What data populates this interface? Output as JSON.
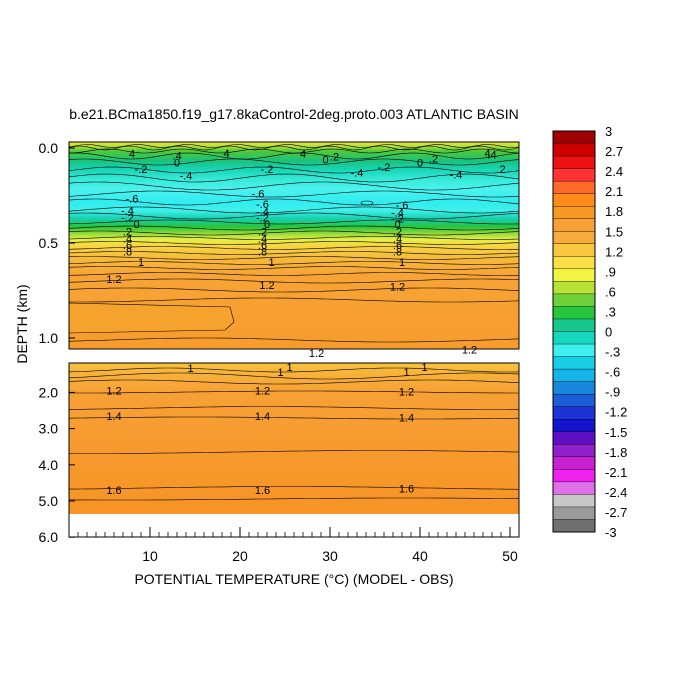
{
  "chart_data": {
    "type": "contour",
    "title": "b.e21.BCma1850.f19_g17.8kaControl-2deg.proto.003 ATLANTIC BASIN",
    "xlabel": "POTENTIAL TEMPERATURE (°C) (MODEL - OBS)",
    "ylabel": "DEPTH (km)",
    "xlim": [
      1,
      51
    ],
    "x_ticks": [
      "10",
      "20",
      "30",
      "40",
      "50"
    ],
    "upper_panel": {
      "ylim": [
        0.0,
        1.2
      ],
      "y_ticks": [
        "0.0",
        "0.5",
        "1.0"
      ]
    },
    "lower_panel": {
      "ylim": [
        1.2,
        6.0
      ],
      "y_ticks": [
        "2.0",
        "3.0",
        "4.0",
        "5.0",
        "6.0"
      ],
      "data_bottom_km": 5.35
    },
    "colorbar": {
      "labels": [
        "3",
        "2.7",
        "2.4",
        "2.1",
        "1.8",
        "1.5",
        "1.2",
        ".9",
        ".6",
        ".3",
        "0",
        "-.3",
        "-.6",
        "-.9",
        "-1.2",
        "-1.5",
        "-1.8",
        "-2.1",
        "-2.4",
        "-2.7",
        "-3"
      ],
      "colors": [
        "#a00000",
        "#cc0000",
        "#ee1111",
        "#ff3333",
        "#ff6a2a",
        "#ff8c1a",
        "#f79a22",
        "#f7a035",
        "#f6ad3b",
        "#f8c840",
        "#fae046",
        "#f3f545",
        "#b7e236",
        "#6fd13a",
        "#27c53b",
        "#16c88b",
        "#16d8c0",
        "#3ff0ee",
        "#18cde6",
        "#16b4e6",
        "#1888dc",
        "#1c5ed8",
        "#1c34d6",
        "#1414ce",
        "#5d0fc4",
        "#9020c7",
        "#c820d0",
        "#f020f0",
        "#e070e8",
        "#c8c8c8",
        "#9a9a9a",
        "#707070"
      ]
    },
    "contour_labels": [
      {
        "text": "4",
        "x": 8,
        "d": 0.03
      },
      {
        "text": "4",
        "x": 18.5,
        "d": 0.025
      },
      {
        "text": "4",
        "x": 27,
        "d": 0.03
      },
      {
        "text": "4",
        "x": 47.5,
        "d": 0.025
      },
      {
        "text": ".4",
        "x": 13,
        "d": 0.04
      },
      {
        "text": "0",
        "x": 13,
        "d": 0.075
      },
      {
        "text": "0",
        "x": 29.5,
        "d": 0.06
      },
      {
        "text": ".2",
        "x": 30.5,
        "d": 0.045
      },
      {
        "text": "0",
        "x": 40,
        "d": 0.075
      },
      {
        "text": ".2",
        "x": 41.5,
        "d": 0.055
      },
      {
        "text": ".4",
        "x": 48,
        "d": 0.035
      },
      {
        "text": "-.2",
        "x": 9,
        "d": 0.11
      },
      {
        "text": "-.4",
        "x": 14,
        "d": 0.145
      },
      {
        "text": "-.2",
        "x": 23,
        "d": 0.11
      },
      {
        "text": "-.4",
        "x": 33,
        "d": 0.13
      },
      {
        "text": "-.2",
        "x": 36,
        "d": 0.1
      },
      {
        "text": "-.4",
        "x": 44,
        "d": 0.14
      },
      {
        "text": ".2",
        "x": 49,
        "d": 0.11
      },
      {
        "text": "-.6",
        "x": 8,
        "d": 0.265
      },
      {
        "text": "-.4",
        "x": 7.5,
        "d": 0.33
      },
      {
        "text": "-.2",
        "x": 7.5,
        "d": 0.365
      },
      {
        "text": "0",
        "x": 8.5,
        "d": 0.4
      },
      {
        "text": ".2",
        "x": 7.5,
        "d": 0.44
      },
      {
        "text": ".4",
        "x": 7.5,
        "d": 0.475
      },
      {
        "text": ".6",
        "x": 7.5,
        "d": 0.51
      },
      {
        "text": ".8",
        "x": 7.5,
        "d": 0.545
      },
      {
        "text": "1",
        "x": 9,
        "d": 0.6
      },
      {
        "text": "-.6",
        "x": 22,
        "d": 0.24
      },
      {
        "text": "-.6",
        "x": 22.5,
        "d": 0.295
      },
      {
        "text": "-.4",
        "x": 22.5,
        "d": 0.335
      },
      {
        "text": "-.2",
        "x": 22.5,
        "d": 0.365
      },
      {
        "text": "0",
        "x": 23,
        "d": 0.4
      },
      {
        "text": ".2",
        "x": 22.5,
        "d": 0.44
      },
      {
        "text": ".4",
        "x": 22.5,
        "d": 0.475
      },
      {
        "text": ".6",
        "x": 22.5,
        "d": 0.51
      },
      {
        "text": ".8",
        "x": 22.5,
        "d": 0.545
      },
      {
        "text": "1",
        "x": 23.5,
        "d": 0.6
      },
      {
        "text": "-.6",
        "x": 38,
        "d": 0.3
      },
      {
        "text": "-.4",
        "x": 37.5,
        "d": 0.34
      },
      {
        "text": "-.2",
        "x": 37.5,
        "d": 0.37
      },
      {
        "text": "0",
        "x": 37.5,
        "d": 0.4
      },
      {
        "text": ".2",
        "x": 37.5,
        "d": 0.44
      },
      {
        "text": ".4",
        "x": 37.5,
        "d": 0.475
      },
      {
        "text": ".6",
        "x": 37.5,
        "d": 0.51
      },
      {
        "text": ".8",
        "x": 37.5,
        "d": 0.545
      },
      {
        "text": "1",
        "x": 38,
        "d": 0.6
      },
      {
        "text": "1.2",
        "x": 6,
        "d": 0.69
      },
      {
        "text": "1.2",
        "x": 23,
        "d": 0.72
      },
      {
        "text": "1.2",
        "x": 37.5,
        "d": 0.73
      },
      {
        "text": "1.2",
        "x": 28.5,
        "d": 1.08
      },
      {
        "text": "1.2",
        "x": 45.5,
        "d": 1.06
      },
      {
        "text": "1",
        "x": 14.5,
        "d": 1.33
      },
      {
        "text": "1",
        "x": 25.5,
        "d": 1.3
      },
      {
        "text": "1",
        "x": 24.5,
        "d": 1.43
      },
      {
        "text": "1",
        "x": 40.5,
        "d": 1.3
      },
      {
        "text": "1",
        "x": 38.5,
        "d": 1.44
      },
      {
        "text": "1.2",
        "x": 6,
        "d": 1.95
      },
      {
        "text": "1.2",
        "x": 22.5,
        "d": 1.95
      },
      {
        "text": "1.2",
        "x": 38.5,
        "d": 1.97
      },
      {
        "text": "1.4",
        "x": 6,
        "d": 2.65
      },
      {
        "text": "1.4",
        "x": 22.5,
        "d": 2.65
      },
      {
        "text": "1.4",
        "x": 38.5,
        "d": 2.7
      },
      {
        "text": "1.6",
        "x": 6,
        "d": 4.7
      },
      {
        "text": "1.6",
        "x": 22.5,
        "d": 4.7
      },
      {
        "text": "1.6",
        "x": 38.5,
        "d": 4.65
      }
    ]
  }
}
